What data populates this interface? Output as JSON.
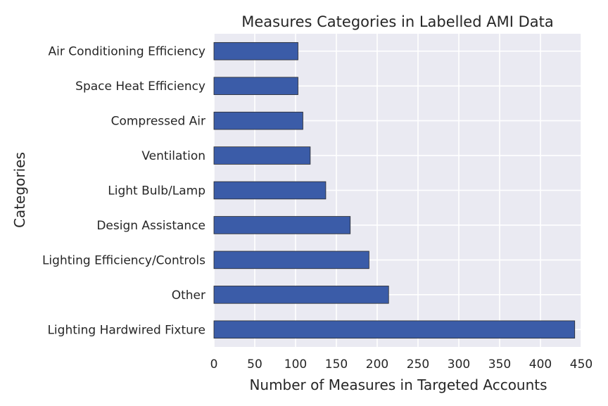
{
  "chart_data": {
    "type": "bar",
    "orientation": "horizontal",
    "title": "Measures Categories in Labelled AMI Data",
    "xlabel": "Number of Measures in Targeted Accounts",
    "ylabel": "Categories",
    "xlim": [
      0,
      450
    ],
    "xticks": [
      0,
      50,
      100,
      150,
      200,
      250,
      300,
      350,
      400,
      450
    ],
    "grid": true,
    "categories": [
      "Lighting Hardwired Fixture",
      "Other",
      "Lighting Efficiency/Controls",
      "Design Assistance",
      "Light Bulb/Lamp",
      "Ventilation",
      "Compressed Air",
      "Space Heat Efficiency",
      "Air Conditioning Efficiency"
    ],
    "values": [
      442,
      214,
      190,
      167,
      137,
      118,
      109,
      103,
      103
    ],
    "bar_color": "#3b5ca8",
    "background_color": "#eaeaf2"
  }
}
